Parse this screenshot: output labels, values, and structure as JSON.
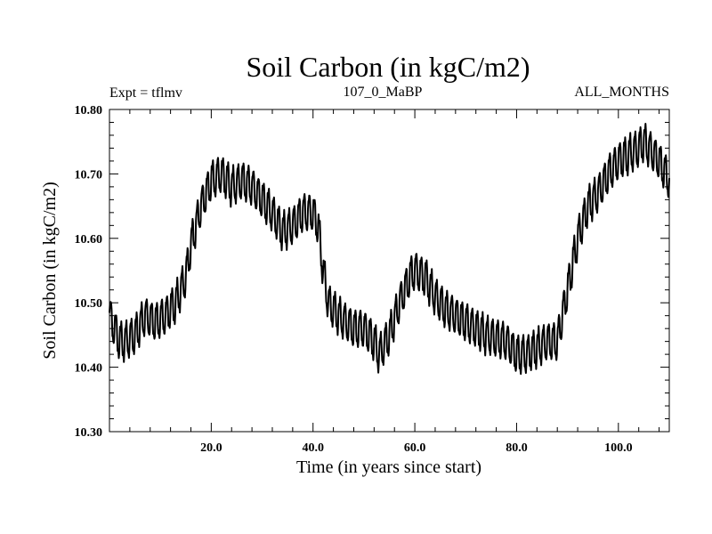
{
  "chart_data": {
    "type": "line",
    "title": "Soil Carbon (in kgC/m2)",
    "subtitle_left": "Expt = tflmv",
    "subtitle_center": "107_0_MaBP",
    "subtitle_right": "ALL_MONTHS",
    "xlabel": "Time (in years since start)",
    "ylabel": "Soil Carbon (in kgC/m2)",
    "xlim": [
      0,
      110
    ],
    "ylim": [
      10.3,
      10.8
    ],
    "xticks": [
      20,
      40,
      60,
      80,
      100
    ],
    "xtick_labels": [
      "20.0",
      "40.0",
      "60.0",
      "80.0",
      "100.0"
    ],
    "yticks": [
      10.3,
      10.4,
      10.5,
      10.6,
      10.7,
      10.8
    ],
    "ytick_labels": [
      "10.30",
      "10.40",
      "10.50",
      "10.60",
      "10.70",
      "10.80"
    ],
    "seasonal_amplitude": 0.028,
    "samples_per_year": 12,
    "series": [
      {
        "name": "Soil Carbon",
        "color": "#000000",
        "annual_mean": {
          "x": [
            0,
            1,
            2,
            3,
            5,
            7,
            9,
            11,
            13,
            15,
            16,
            18,
            20,
            22,
            24,
            26,
            28,
            30,
            32,
            34,
            36,
            38,
            40,
            41,
            42,
            43,
            45,
            48,
            50,
            52,
            53,
            55,
            57,
            59,
            60,
            62,
            64,
            66,
            70,
            74,
            78,
            80,
            82,
            84,
            86,
            88,
            90,
            92,
            94,
            96,
            98,
            100,
            102,
            104,
            105,
            106,
            108,
            110
          ],
          "y": [
            10.48,
            10.46,
            10.44,
            10.44,
            10.45,
            10.48,
            10.47,
            10.48,
            10.5,
            10.54,
            10.59,
            10.65,
            10.69,
            10.7,
            10.68,
            10.69,
            10.68,
            10.66,
            10.64,
            10.61,
            10.62,
            10.64,
            10.64,
            10.62,
            10.55,
            10.5,
            10.48,
            10.46,
            10.46,
            10.44,
            10.42,
            10.45,
            10.5,
            10.54,
            10.55,
            10.54,
            10.51,
            10.49,
            10.47,
            10.45,
            10.44,
            10.42,
            10.42,
            10.43,
            10.44,
            10.44,
            10.52,
            10.6,
            10.65,
            10.67,
            10.7,
            10.72,
            10.73,
            10.74,
            10.75,
            10.74,
            10.72,
            10.69
          ]
        }
      }
    ]
  }
}
